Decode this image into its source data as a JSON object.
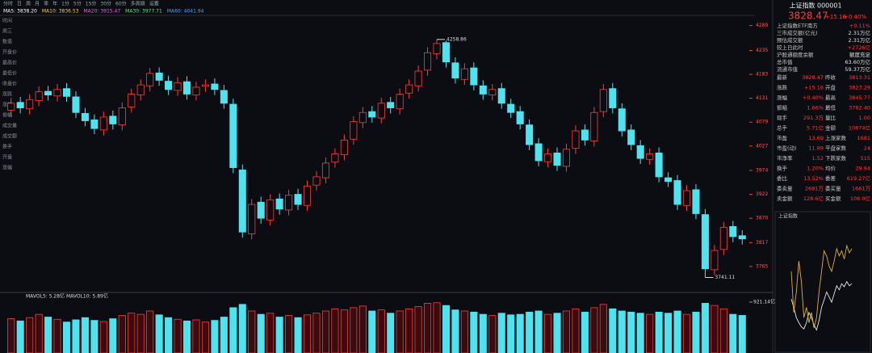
{
  "toolbar": [
    "分时",
    "日",
    "周",
    "月",
    "季",
    "年",
    "1分",
    "5分",
    "15分",
    "30分",
    "60分",
    "多周期",
    "设置"
  ],
  "ma_labels": [
    {
      "text": "MA5: 3838.20",
      "color": "#ffffff"
    },
    {
      "text": "MA10: 3836.53",
      "color": "#ffd23c"
    },
    {
      "text": "MA20: 3915.47",
      "color": "#ff5af0"
    },
    {
      "text": "MA30: 3977.71",
      "color": "#3cff6e"
    },
    {
      "text": "MA60: 4041.94",
      "color": "#46aaff"
    }
  ],
  "side_labels": [
    "时间",
    "周三",
    "数值",
    "开盘价",
    "最高价",
    "最低价",
    "收盘价",
    "涨跌",
    "涨幅",
    "振幅",
    "成交量",
    "成交额",
    "换手",
    "开盘",
    "涨幅"
  ],
  "chart_data": [
    {
      "type": "candlestick",
      "up_color": "#ff3b3b",
      "down_color": "#4fe3f0",
      "open": [
        4105,
        4122,
        4108,
        4126,
        4146,
        4136,
        4152,
        4134,
        4098,
        4084,
        4062,
        4092,
        4073,
        4112,
        4138,
        4158,
        4186,
        4168,
        4148,
        4167,
        4138,
        4157,
        4162,
        4148,
        4118,
        3975,
        3836,
        3905,
        3866,
        3912,
        3888,
        3922,
        3898,
        3942,
        3958,
        3992,
        4008,
        4042,
        4078,
        4102,
        4088,
        4122,
        4108,
        4142,
        4158,
        4192,
        4228,
        4252,
        4208,
        4172,
        4197,
        4158,
        4138,
        4152,
        4118,
        4102,
        4073,
        4032,
        3993,
        4012,
        3983,
        4022,
        4062,
        4038,
        4102,
        4152,
        4108,
        4062,
        4028,
        3998,
        4012,
        3958,
        3952,
        3898,
        3932,
        3878,
        3758,
        3802,
        3852,
        3832
      ],
      "high": [
        4132,
        4134,
        4140,
        4157,
        4158,
        4162,
        4164,
        4146,
        4110,
        4096,
        4102,
        4104,
        4122,
        4152,
        4172,
        4197,
        4198,
        4180,
        4177,
        4179,
        4167,
        4172,
        4174,
        4160,
        4130,
        3987,
        3912,
        3917,
        3922,
        3924,
        3932,
        3934,
        3952,
        3972,
        4002,
        4022,
        4052,
        4092,
        4112,
        4114,
        4132,
        4134,
        4152,
        4172,
        4202,
        4242,
        4258.86,
        4256,
        4220,
        4207,
        4209,
        4170,
        4162,
        4164,
        4130,
        4114,
        4085,
        4044,
        4022,
        4024,
        4032,
        4072,
        4074,
        4112,
        4162,
        4164,
        4120,
        4074,
        4040,
        4022,
        4024,
        3970,
        3964,
        3942,
        3944,
        3890,
        3812,
        3862,
        3864,
        3844
      ],
      "low": [
        4093,
        4098,
        4096,
        4114,
        4126,
        4124,
        4123,
        4088,
        4070,
        4053,
        4050,
        4063,
        4061,
        4100,
        4126,
        4146,
        4158,
        4138,
        4136,
        4128,
        4126,
        4145,
        4138,
        4108,
        3968,
        3828,
        3824,
        3858,
        3854,
        3878,
        3876,
        3888,
        3886,
        3930,
        3946,
        3980,
        3996,
        4030,
        4066,
        4078,
        4076,
        4098,
        4096,
        4130,
        4146,
        4180,
        4216,
        4198,
        4163,
        4160,
        4148,
        4128,
        4126,
        4108,
        4088,
        4063,
        4018,
        3983,
        3981,
        3973,
        3971,
        4010,
        4028,
        4026,
        4090,
        4098,
        4048,
        4018,
        3988,
        3986,
        3948,
        3938,
        3888,
        3886,
        3868,
        3741.11,
        3746,
        3790,
        3818,
        3813
      ],
      "close": [
        4120,
        4110,
        4128,
        4145,
        4138,
        4150,
        4135,
        4100,
        4082,
        4065,
        4090,
        4075,
        4110,
        4140,
        4160,
        4185,
        4170,
        4150,
        4165,
        4140,
        4155,
        4160,
        4150,
        4120,
        3980,
        3840,
        3900,
        3870,
        3910,
        3890,
        3920,
        3900,
        3940,
        3960,
        3990,
        4010,
        4040,
        4080,
        4100,
        4090,
        4120,
        4110,
        4140,
        4160,
        4190,
        4230,
        4250,
        4210,
        4175,
        4195,
        4160,
        4140,
        4150,
        4120,
        4100,
        4075,
        4030,
        3995,
        4010,
        3985,
        4020,
        4060,
        4040,
        4100,
        4150,
        4110,
        4060,
        4030,
        4000,
        4010,
        3960,
        3950,
        3900,
        3930,
        3880,
        3760,
        3800,
        3850,
        3830,
        3825
      ],
      "ylim": [
        3735,
        4306
      ],
      "yticks": [
        4289,
        4235,
        4183,
        4131,
        4079,
        4027,
        3974,
        3922,
        3870,
        3817,
        3765
      ],
      "high_mark": 4258.86,
      "low_mark": 3741.11
    },
    {
      "type": "bar",
      "title": "MAVOL5: 5.28亿  MAVOL10: 5.89亿",
      "values": [
        620,
        580,
        640,
        700,
        650,
        610,
        560,
        600,
        640,
        590,
        570,
        620,
        680,
        720,
        700,
        760,
        690,
        640,
        610,
        580,
        600,
        560,
        590,
        650,
        820,
        880,
        760,
        700,
        720,
        650,
        680,
        640,
        690,
        720,
        760,
        800,
        780,
        820,
        850,
        760,
        780,
        720,
        760,
        800,
        840,
        900,
        910,
        860,
        780,
        760,
        740,
        700,
        680,
        720,
        690,
        700,
        740,
        760,
        700,
        720,
        760,
        800,
        740,
        820,
        880,
        800,
        760,
        740,
        720,
        700,
        740,
        720,
        760,
        700,
        740,
        900,
        860,
        800,
        700,
        680
      ],
      "ylim": [
        0,
        950
      ],
      "yticks": [
        {
          "value": 921.14,
          "label": "921.14亿"
        }
      ]
    },
    {
      "type": "line",
      "title": "上证指数",
      "ylim": [
        3770,
        3880
      ],
      "series": [
        {
          "name": "上证指数",
          "color": "#e8e8e8",
          "values": [
            3813,
            3805,
            3795,
            3790,
            3786,
            3784,
            3790,
            3800,
            3795,
            3788,
            3783,
            3792,
            3805,
            3812,
            3820,
            3815,
            3810,
            3818,
            3826,
            3822,
            3828,
            3825,
            3830,
            3826,
            3828
          ]
        },
        {
          "name": "上证指数ETF南方",
          "color": "#e0b030",
          "values": [
            3840,
            3800,
            3820,
            3850,
            3830,
            3795,
            3805,
            3790,
            3800,
            3785,
            3795,
            3820,
            3840,
            3860,
            3855,
            3845,
            3840,
            3850,
            3862,
            3855,
            3860,
            3852,
            3865,
            3858,
            3862
          ]
        }
      ]
    }
  ],
  "panel": {
    "title": "上证指数 000001",
    "price": "3828.47",
    "change": "+15.16",
    "change_pct": "+0.40%",
    "info_rows": [
      [
        "上证指数ETF南方",
        "+0.11%"
      ],
      [
        "三市成交额(亿元)",
        "2.31万亿"
      ],
      [
        "预估成交额",
        "2.31万亿"
      ],
      [
        "较上日此时",
        "+2726亿"
      ],
      [
        "沪股通额度余额",
        "额度充足"
      ],
      [
        "总市值",
        "63.60万亿"
      ],
      [
        "流通市值",
        "59.37万亿"
      ]
    ],
    "quote_rows": [
      [
        "最新",
        "3828.47",
        "昨收",
        "3813.31"
      ],
      [
        "涨跌",
        "+15.16",
        "开盘",
        "3823.29"
      ],
      [
        "涨幅",
        "+0.40%",
        "最高",
        "3845.77"
      ],
      [
        "振幅",
        "1.66%",
        "最低",
        "3782.40"
      ],
      [
        "现手",
        "291.3万",
        "量比",
        "1.00"
      ],
      [
        "总手",
        "5.71亿",
        "金额",
        "10874亿"
      ],
      [
        "市盈",
        "13.69",
        "上涨家数",
        "1681"
      ],
      [
        "市盈(动)",
        "11.89",
        "平盘家数",
        "24"
      ],
      [
        "市净率",
        "1.52",
        "下跌家数",
        "515"
      ],
      [
        "换手",
        "1.20%",
        "均价",
        "29.94"
      ],
      [
        "委比",
        "13.52%",
        "委差",
        "619.27亿"
      ],
      [
        "委卖量",
        "2681万",
        "委买量",
        "1661万"
      ],
      [
        "卖金额",
        "128.6亿",
        "买金额",
        "108.0亿"
      ]
    ]
  }
}
